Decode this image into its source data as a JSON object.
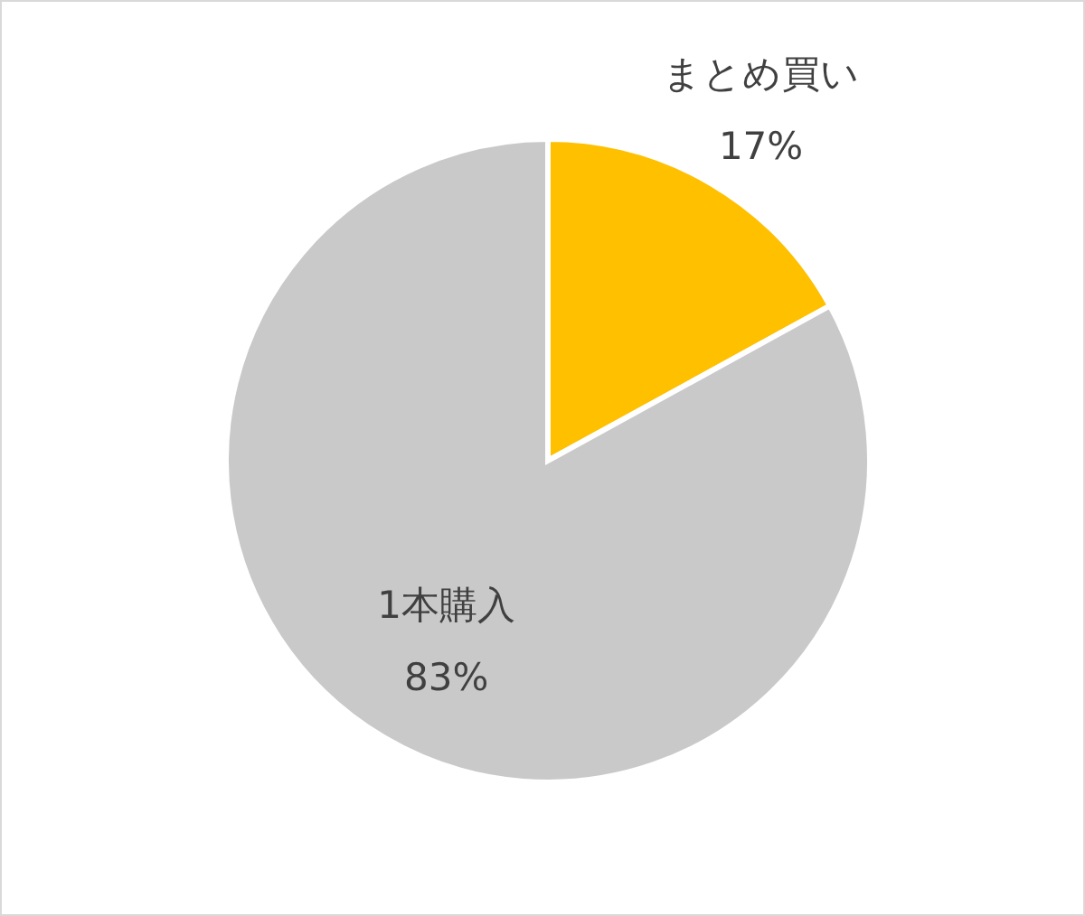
{
  "chart_data": {
    "type": "pie",
    "categories": [
      "まとめ買い",
      "1本購入"
    ],
    "values": [
      17,
      83
    ],
    "colors": [
      "#ffc000",
      "#c9c9c9"
    ],
    "value_labels": [
      "17%",
      "83%"
    ]
  }
}
